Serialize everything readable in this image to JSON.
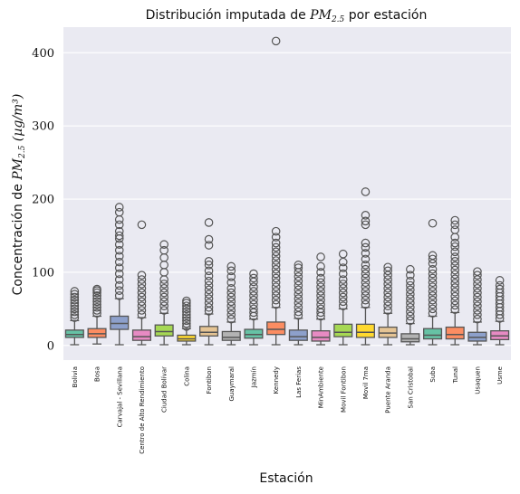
{
  "chart_data": {
    "type": "box",
    "title": "Distribución imputada de PM2.5 por estación",
    "title_prefix": "Distribución imputada de ",
    "title_math": "PM",
    "title_sub": "2.5",
    "title_suffix": " por estación",
    "xlabel": "Estación",
    "ylabel_text": "Concentración de ",
    "ylabel_math": "PM",
    "ylabel_sub": "2.5",
    "ylabel_unit": " (µg/m³)",
    "ylim": [
      -20,
      435
    ],
    "yticks": [
      0,
      100,
      200,
      300,
      400
    ],
    "grid": true,
    "categories": [
      "Bolivia",
      "Bosa",
      "Carvajal - Sevillana",
      "Centro de Alto Rendimiento",
      "Ciudad Bolívar",
      "Colina",
      "Fontibon",
      "Guaymaral",
      "Jazmín",
      "Kennedy",
      "Las Ferias",
      "MinAmbiente",
      "Movil Fontibon",
      "Movil 7ma",
      "Puente Aranda",
      "San Cristobal",
      "Suba",
      "Tunal",
      "Usaquen",
      "Usme"
    ],
    "colors": [
      "#66c2a5",
      "#fc8d62",
      "#8da0cb",
      "#e78ac3",
      "#a6d854",
      "#ffd92f",
      "#e5c494",
      "#b3b3b3",
      "#66c2a5",
      "#fc8d62",
      "#8da0cb",
      "#e78ac3",
      "#a6d854",
      "#ffd92f",
      "#e5c494",
      "#b3b3b3",
      "#66c2a5",
      "#fc8d62",
      "#8da0cb",
      "#e78ac3"
    ],
    "boxes": [
      {
        "min": 1,
        "q1": 11,
        "median": 15,
        "q3": 21,
        "max": 34,
        "outliers": [
          38,
          42,
          46,
          50,
          54,
          58,
          62,
          66,
          70,
          74
        ]
      },
      {
        "min": 2,
        "q1": 11,
        "median": 16,
        "q3": 23,
        "max": 40,
        "outliers": [
          44,
          48,
          52,
          56,
          60,
          64,
          68,
          72,
          75,
          77
        ]
      },
      {
        "min": 1,
        "q1": 22,
        "median": 30,
        "q3": 40,
        "max": 64,
        "outliers": [
          68,
          75,
          82,
          90,
          98,
          106,
          114,
          122,
          130,
          138,
          146,
          150,
          156,
          165,
          172,
          182,
          189
        ]
      },
      {
        "min": 1,
        "q1": 7,
        "median": 12,
        "q3": 21,
        "max": 38,
        "outliers": [
          42,
          48,
          54,
          60,
          66,
          72,
          78,
          84,
          90,
          96,
          165
        ]
      },
      {
        "min": 1,
        "q1": 13,
        "median": 19,
        "q3": 28,
        "max": 44,
        "outliers": [
          48,
          54,
          60,
          66,
          72,
          78,
          84,
          90,
          100,
          110,
          120,
          130,
          138
        ]
      },
      {
        "min": 1,
        "q1": 6,
        "median": 9,
        "q3": 14,
        "max": 23,
        "outliers": [
          26,
          30,
          34,
          38,
          42,
          46,
          50,
          54,
          58,
          61
        ]
      },
      {
        "min": 1,
        "q1": 13,
        "median": 18,
        "q3": 26,
        "max": 43,
        "outliers": [
          47,
          52,
          58,
          64,
          70,
          76,
          82,
          88,
          95,
          102,
          110,
          115,
          137,
          145,
          168
        ]
      },
      {
        "min": 1,
        "q1": 7,
        "median": 11,
        "q3": 19,
        "max": 32,
        "outliers": [
          36,
          42,
          48,
          54,
          60,
          66,
          72,
          78,
          86,
          94,
          102,
          108
        ]
      },
      {
        "min": 1,
        "q1": 10,
        "median": 15,
        "q3": 22,
        "max": 36,
        "outliers": [
          40,
          45,
          50,
          56,
          62,
          68,
          74,
          80,
          87,
          92,
          98
        ]
      },
      {
        "min": 1,
        "q1": 15,
        "median": 22,
        "q3": 32,
        "max": 52,
        "outliers": [
          56,
          62,
          68,
          74,
          80,
          86,
          92,
          98,
          104,
          110,
          116,
          122,
          128,
          134,
          140,
          148,
          156,
          416
        ]
      },
      {
        "min": 1,
        "q1": 7,
        "median": 12,
        "q3": 21,
        "max": 37,
        "outliers": [
          41,
          46,
          52,
          58,
          64,
          70,
          76,
          82,
          88,
          94,
          100,
          106,
          110
        ]
      },
      {
        "min": 1,
        "q1": 6,
        "median": 11,
        "q3": 20,
        "max": 36,
        "outliers": [
          40,
          45,
          50,
          56,
          62,
          68,
          74,
          80,
          86,
          92,
          100,
          108,
          121
        ]
      },
      {
        "min": 1,
        "q1": 12,
        "median": 18,
        "q3": 29,
        "max": 50,
        "outliers": [
          54,
          60,
          66,
          72,
          78,
          84,
          90,
          98,
          106,
          114,
          125
        ]
      },
      {
        "min": 1,
        "q1": 11,
        "median": 18,
        "q3": 29,
        "max": 52,
        "outliers": [
          56,
          62,
          68,
          74,
          80,
          86,
          92,
          98,
          104,
          110,
          118,
          126,
          134,
          140,
          165,
          170,
          178,
          210
        ]
      },
      {
        "min": 1,
        "q1": 11,
        "median": 17,
        "q3": 25,
        "max": 44,
        "outliers": [
          48,
          54,
          60,
          66,
          72,
          78,
          84,
          90,
          96,
          102,
          107
        ]
      },
      {
        "min": 1,
        "q1": 5,
        "median": 9,
        "q3": 16,
        "max": 30,
        "outliers": [
          34,
          40,
          46,
          52,
          58,
          64,
          70,
          76,
          82,
          88,
          96,
          104
        ]
      },
      {
        "min": 1,
        "q1": 9,
        "median": 14,
        "q3": 23,
        "max": 40,
        "outliers": [
          44,
          50,
          56,
          62,
          68,
          74,
          80,
          86,
          92,
          98,
          104,
          112,
          118,
          123,
          167
        ]
      },
      {
        "min": 1,
        "q1": 9,
        "median": 15,
        "q3": 25,
        "max": 45,
        "outliers": [
          49,
          55,
          61,
          67,
          73,
          79,
          85,
          91,
          97,
          103,
          109,
          115,
          121,
          128,
          135,
          140,
          148,
          158,
          165,
          171
        ]
      },
      {
        "min": 1,
        "q1": 6,
        "median": 11,
        "q3": 18,
        "max": 32,
        "outliers": [
          36,
          42,
          48,
          54,
          60,
          66,
          72,
          78,
          84,
          90,
          96,
          101
        ]
      },
      {
        "min": 1,
        "q1": 8,
        "median": 13,
        "q3": 20,
        "max": 33,
        "outliers": [
          37,
          42,
          47,
          52,
          57,
          62,
          67,
          72,
          77,
          82,
          89
        ]
      }
    ]
  }
}
